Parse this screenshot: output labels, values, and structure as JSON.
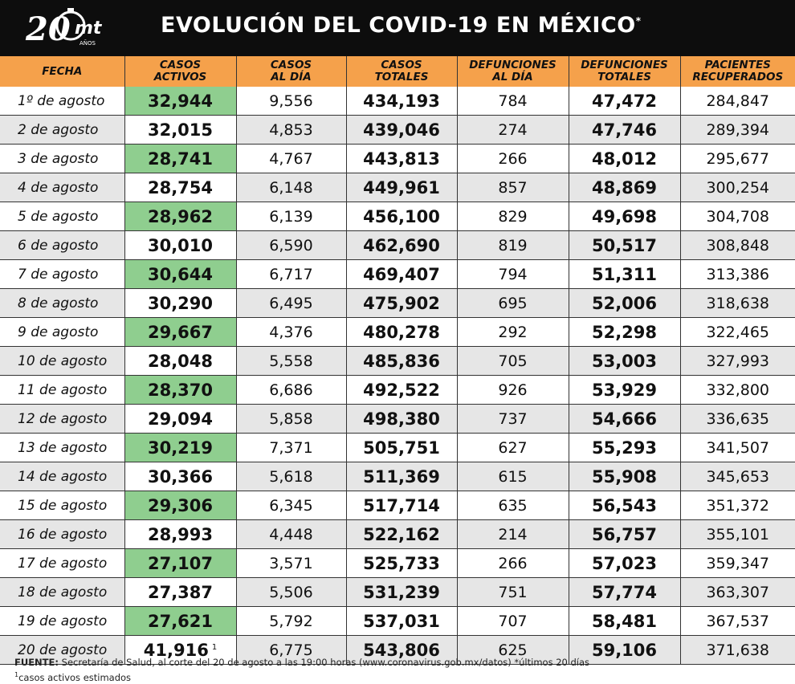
{
  "header": {
    "logo_number": "20",
    "logo_brand": "mt",
    "logo_sub": "AÑOS",
    "title": "EVOLUCIÓN DEL COVID-19 EN MÉXICO",
    "title_mark": "*"
  },
  "colors": {
    "header_bg": "#0d0d0d",
    "column_header_bg": "#f5a14b",
    "active_highlight": "#8fce8f",
    "stripe": "#e6e6e6"
  },
  "chart_data": {
    "type": "table",
    "title": "EVOLUCIÓN DEL COVID-19 EN MÉXICO",
    "columns": [
      [
        "FECHA"
      ],
      [
        "CASOS",
        "ACTIVOS"
      ],
      [
        "CASOS",
        "AL DÍA"
      ],
      [
        "CASOS",
        "TOTALES"
      ],
      [
        "DEFUNCIONES",
        "AL DÍA"
      ],
      [
        "DEFUNCIONES",
        "TOTALES"
      ],
      [
        "PACIENTES",
        "RECUPERADOS"
      ]
    ],
    "rows": [
      [
        "1º de agosto",
        "32,944",
        "9,556",
        "434,193",
        "784",
        "47,472",
        "284,847"
      ],
      [
        "2 de agosto",
        "32,015",
        "4,853",
        "439,046",
        "274",
        "47,746",
        "289,394"
      ],
      [
        "3 de agosto",
        "28,741",
        "4,767",
        "443,813",
        "266",
        "48,012",
        "295,677"
      ],
      [
        "4 de agosto",
        "28,754",
        "6,148",
        "449,961",
        "857",
        "48,869",
        "300,254"
      ],
      [
        "5 de agosto",
        "28,962",
        "6,139",
        "456,100",
        "829",
        "49,698",
        "304,708"
      ],
      [
        "6 de agosto",
        "30,010",
        "6,590",
        "462,690",
        "819",
        "50,517",
        "308,848"
      ],
      [
        "7 de agosto",
        "30,644",
        "6,717",
        "469,407",
        "794",
        "51,311",
        "313,386"
      ],
      [
        "8 de agosto",
        "30,290",
        "6,495",
        "475,902",
        "695",
        "52,006",
        "318,638"
      ],
      [
        "9 de agosto",
        "29,667",
        "4,376",
        "480,278",
        "292",
        "52,298",
        "322,465"
      ],
      [
        "10 de agosto",
        "28,048",
        "5,558",
        "485,836",
        "705",
        "53,003",
        "327,993"
      ],
      [
        "11 de agosto",
        "28,370",
        "6,686",
        "492,522",
        "926",
        "53,929",
        "332,800"
      ],
      [
        "12 de agosto",
        "29,094",
        "5,858",
        "498,380",
        "737",
        "54,666",
        "336,635"
      ],
      [
        "13 de agosto",
        "30,219",
        "7,371",
        "505,751",
        "627",
        "55,293",
        "341,507"
      ],
      [
        "14 de agosto",
        "30,366",
        "5,618",
        "511,369",
        "615",
        "55,908",
        "345,653"
      ],
      [
        "15 de agosto",
        "29,306",
        "6,345",
        "517,714",
        "635",
        "56,543",
        "351,372"
      ],
      [
        "16 de agosto",
        "28,993",
        "4,448",
        "522,162",
        "214",
        "56,757",
        "355,101"
      ],
      [
        "17 de agosto",
        "27,107",
        "3,571",
        "525,733",
        "266",
        "57,023",
        "359,347"
      ],
      [
        "18 de agosto",
        "27,387",
        "5,506",
        "531,239",
        "751",
        "57,774",
        "363,307"
      ],
      [
        "19 de agosto",
        "27,621",
        "5,792",
        "537,031",
        "707",
        "58,481",
        "367,537"
      ],
      [
        "20 de agosto",
        "41,916",
        "6,775",
        "543,806",
        "625",
        "59,106",
        "371,638"
      ]
    ],
    "estimated_marker": "1"
  },
  "footer": {
    "source_label": "FUENTE:",
    "source_text": " Secretaría de Salud, al corte del 20 de agosto a las 19:00 horas (www.coronavirus.gob.mx/datos) *últimos 20 días",
    "note_mark": "1",
    "note_text": "casos activos estimados"
  }
}
